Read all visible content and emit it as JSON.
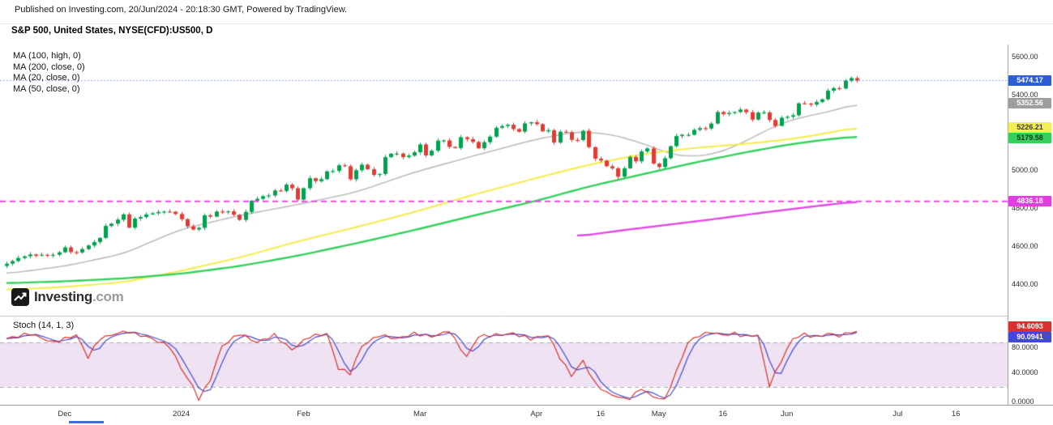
{
  "header": {
    "published": "Published on Investing.com, 20/Jun/2024 - 20:18:30 GMT, Powered by TradingView."
  },
  "title": "S&P 500, United States, NYSE(CFD):US500, D",
  "legend": {
    "items": [
      "MA (100, high, 0)",
      "MA (200, close, 0)",
      "MA (20, close, 0)",
      "MA (50, close, 0)"
    ]
  },
  "stoch_label": "Stoch (14, 1, 3)",
  "watermark": {
    "name": "Investing",
    "suffix": ".com"
  },
  "axis_badges": {
    "price": [
      {
        "name": "last-price-badge",
        "text": "5474.17",
        "value": 5474.17,
        "bg": "#2c5fd2",
        "fg": "#ffffff"
      },
      {
        "name": "ma20-badge",
        "text": "5352.56",
        "value": 5352.56,
        "bg": "#9e9e9e",
        "fg": "#ffffff"
      },
      {
        "name": "ma50-badge",
        "text": "5226.21",
        "value": 5226.21,
        "bg": "#f2ee55",
        "fg": "#3a3a3a"
      },
      {
        "name": "ma100-badge",
        "text": "5179.58",
        "value": 5179.58,
        "bg": "#35d05c",
        "fg": "#10381c"
      },
      {
        "name": "ma200-badge",
        "text": "4836.18",
        "value": 4836.18,
        "bg": "#df3fdf",
        "fg": "#ffffff"
      }
    ],
    "stoch": [
      {
        "name": "stoch-k-badge",
        "text": "94.6093",
        "value": 94.6093,
        "bg": "#d9312e",
        "fg": "#ffffff"
      },
      {
        "name": "stoch-d-badge",
        "text": "90.0941",
        "value": 90.0941,
        "bg": "#4049d0",
        "fg": "#ffffff"
      }
    ]
  },
  "chart_data": [
    {
      "type": "candlestick",
      "title": "S&P 500, United States, NYSE(CFD):US500, D",
      "ylim": [
        4240,
        5645
      ],
      "y_ticks": [
        5600,
        5400,
        5000,
        4800,
        4600,
        4400
      ],
      "x_axis_labels": [
        {
          "label": "Dec",
          "day": 10
        },
        {
          "label": "2024",
          "day": 30
        },
        {
          "label": "Feb",
          "day": 51
        },
        {
          "label": "Mar",
          "day": 71
        },
        {
          "label": "Apr",
          "day": 91
        },
        {
          "label": "16",
          "day": 102
        },
        {
          "label": "May",
          "day": 112
        },
        {
          "label": "16",
          "day": 123
        },
        {
          "label": "Jun",
          "day": 134
        },
        {
          "label": "Jul",
          "day": 153
        },
        {
          "label": "16",
          "day": 163
        }
      ],
      "first_open": 4496,
      "closes": [
        4508,
        4522,
        4538,
        4547,
        4557,
        4550,
        4555,
        4551,
        4555,
        4568,
        4594,
        4569,
        4567,
        4585,
        4604,
        4622,
        4644,
        4707,
        4719,
        4740,
        4768,
        4698,
        4746,
        4754,
        4768,
        4774,
        4781,
        4783,
        4782,
        4770,
        4743,
        4705,
        4688,
        4697,
        4763,
        4756,
        4783,
        4780,
        4784,
        4766,
        4739,
        4781,
        4840,
        4850,
        4864,
        4868,
        4894,
        4891,
        4925,
        4906,
        4846,
        4906,
        4959,
        4943,
        4954,
        4995,
        4997,
        5027,
        5022,
        4953,
        5001,
        5030,
        5006,
        4976,
        4981,
        5070,
        5088,
        5089,
        5070,
        5078,
        5096,
        5137,
        5079,
        5104,
        5157,
        5158,
        5124,
        5118,
        5175,
        5165,
        5150,
        5117,
        5149,
        5178,
        5225,
        5234,
        5241,
        5218,
        5204,
        5248,
        5254,
        5244,
        5206,
        5212,
        5147,
        5204,
        5202,
        5161,
        5160,
        5209,
        5123,
        5062,
        5052,
        5022,
        5011,
        4967,
        5011,
        5071,
        5048,
        5100,
        5116,
        5036,
        5018,
        5064,
        5128,
        5181,
        5188,
        5188,
        5214,
        5223,
        5221,
        5247,
        5308,
        5297,
        5303,
        5308,
        5321,
        5307,
        5268,
        5305,
        5306,
        5266,
        5235,
        5278,
        5283,
        5291,
        5354,
        5353,
        5347,
        5361,
        5375,
        5421,
        5434,
        5432,
        5473,
        5487,
        5474.17
      ],
      "up_color": "#00a14f",
      "down_color": "#e33b32",
      "last_price": 5474.17,
      "last_price_line_color": "#6f87c4",
      "overlays": [
        {
          "name": "MA (20, close, 0)",
          "color": "#bdbdbd",
          "width": 1.6,
          "last": 5352.56,
          "anchors": [
            [
              0,
              4455
            ],
            [
              10,
              4495
            ],
            [
              20,
              4560
            ],
            [
              30,
              4690
            ],
            [
              40,
              4762
            ],
            [
              50,
              4820
            ],
            [
              60,
              4885
            ],
            [
              70,
              4990
            ],
            [
              80,
              5075
            ],
            [
              91,
              5165
            ],
            [
              98,
              5205
            ],
            [
              104,
              5190
            ],
            [
              110,
              5135
            ],
            [
              114,
              5085
            ],
            [
              118,
              5072
            ],
            [
              122,
              5090
            ],
            [
              126,
              5140
            ],
            [
              130,
              5205
            ],
            [
              134,
              5260
            ],
            [
              138,
              5290
            ],
            [
              142,
              5315
            ],
            [
              146,
              5352.56
            ]
          ]
        },
        {
          "name": "MA (50, close, 0)",
          "color": "#f2ee55",
          "width": 2.2,
          "last": 5226.21,
          "anchors": [
            [
              0,
              4370
            ],
            [
              10,
              4385
            ],
            [
              20,
              4410
            ],
            [
              30,
              4470
            ],
            [
              40,
              4540
            ],
            [
              50,
              4625
            ],
            [
              60,
              4700
            ],
            [
              70,
              4780
            ],
            [
              80,
              4870
            ],
            [
              91,
              4960
            ],
            [
              100,
              5030
            ],
            [
              110,
              5090
            ],
            [
              118,
              5118
            ],
            [
              126,
              5138
            ],
            [
              134,
              5162
            ],
            [
              140,
              5192
            ],
            [
              146,
              5226.21
            ]
          ]
        },
        {
          "name": "MA (100, high, 0)",
          "color": "#35d05c",
          "width": 2.4,
          "last": 5179.58,
          "anchors": [
            [
              0,
              4405
            ],
            [
              10,
              4415
            ],
            [
              20,
              4430
            ],
            [
              30,
              4455
            ],
            [
              40,
              4495
            ],
            [
              50,
              4550
            ],
            [
              60,
              4615
            ],
            [
              70,
              4685
            ],
            [
              80,
              4760
            ],
            [
              91,
              4840
            ],
            [
              100,
              4915
            ],
            [
              110,
              4985
            ],
            [
              118,
              5040
            ],
            [
              126,
              5090
            ],
            [
              134,
              5135
            ],
            [
              140,
              5160
            ],
            [
              146,
              5179.58
            ]
          ]
        },
        {
          "name": "MA (200, close, 0)",
          "color": "#e14ae1",
          "width": 2.4,
          "last": 4836.18,
          "hline": 4836.18,
          "anchors": [
            [
              98,
              4652
            ],
            [
              106,
              4685
            ],
            [
              114,
              4715
            ],
            [
              122,
              4745
            ],
            [
              130,
              4778
            ],
            [
              138,
              4808
            ],
            [
              146,
              4836.18
            ]
          ]
        }
      ]
    },
    {
      "type": "line",
      "title": "Stoch (14, 1, 3)",
      "ylim": [
        0,
        100
      ],
      "band": [
        20,
        80
      ],
      "band_fill": "rgba(168,94,184,0.18)",
      "band_border": "#a7a7a7",
      "y_ticks": [
        80,
        40,
        0
      ],
      "series": [
        {
          "name": "%K",
          "color": "#d9312e",
          "last": 94.6093,
          "anchors": [
            [
              0,
              85
            ],
            [
              4,
              92
            ],
            [
              8,
              80
            ],
            [
              12,
              90
            ],
            [
              14,
              60
            ],
            [
              16,
              85
            ],
            [
              20,
              95
            ],
            [
              24,
              88
            ],
            [
              28,
              75
            ],
            [
              30,
              45
            ],
            [
              32,
              20
            ],
            [
              33,
              2
            ],
            [
              35,
              30
            ],
            [
              37,
              75
            ],
            [
              40,
              92
            ],
            [
              43,
              80
            ],
            [
              46,
              90
            ],
            [
              49,
              70
            ],
            [
              52,
              88
            ],
            [
              55,
              92
            ],
            [
              57,
              45
            ],
            [
              59,
              38
            ],
            [
              61,
              75
            ],
            [
              64,
              90
            ],
            [
              67,
              85
            ],
            [
              70,
              92
            ],
            [
              73,
              88
            ],
            [
              76,
              95
            ],
            [
              79,
              60
            ],
            [
              81,
              88
            ],
            [
              84,
              90
            ],
            [
              87,
              92
            ],
            [
              90,
              85
            ],
            [
              93,
              90
            ],
            [
              95,
              60
            ],
            [
              97,
              35
            ],
            [
              99,
              55
            ],
            [
              101,
              25
            ],
            [
              103,
              12
            ],
            [
              105,
              6
            ],
            [
              107,
              3
            ],
            [
              109,
              18
            ],
            [
              111,
              6
            ],
            [
              113,
              3
            ],
            [
              115,
              40
            ],
            [
              117,
              80
            ],
            [
              119,
              90
            ],
            [
              121,
              93
            ],
            [
              123,
              90
            ],
            [
              125,
              92
            ],
            [
              127,
              88
            ],
            [
              129,
              90
            ],
            [
              130,
              55
            ],
            [
              131,
              22
            ],
            [
              133,
              55
            ],
            [
              135,
              85
            ],
            [
              137,
              91
            ],
            [
              139,
              87
            ],
            [
              141,
              92
            ],
            [
              143,
              89
            ],
            [
              145,
              93
            ],
            [
              146,
              94.61
            ]
          ]
        },
        {
          "name": "%D",
          "color": "#4049d0",
          "last": 90.0941,
          "derived": "sma3"
        }
      ]
    }
  ]
}
